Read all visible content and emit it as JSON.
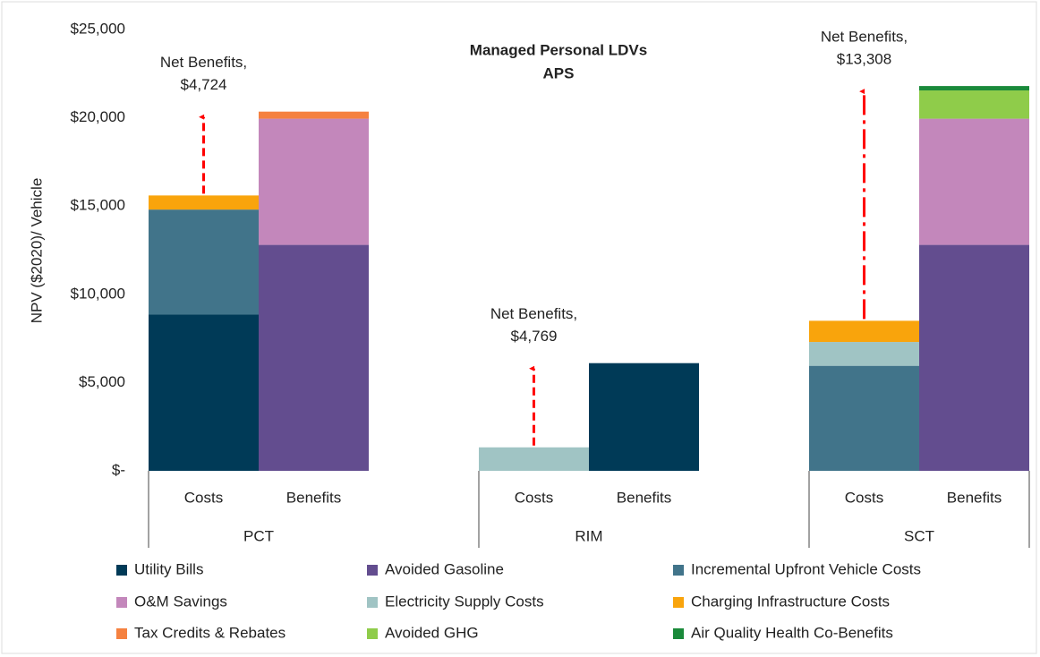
{
  "chart_data": {
    "type": "stacked_bar",
    "title": [
      "Managed Personal LDVs",
      "APS"
    ],
    "y_label": "NPV ($2020)/ Vehicle",
    "categories": [
      "Costs",
      "Benefits",
      "Costs",
      "Benefits",
      "Costs",
      "Benefits"
    ],
    "groups": [
      "PCT",
      "RIM",
      "SCT"
    ],
    "series": [
      {
        "name": "Utility Bills",
        "color": "#003a57",
        "values": [
          8850,
          null,
          null,
          6100,
          null,
          null
        ]
      },
      {
        "name": "Avoided Gasoline",
        "color": "#634d8f",
        "values": [
          null,
          12800,
          null,
          null,
          null,
          12800
        ]
      },
      {
        "name": "Incremental Upfront Vehicle Costs",
        "color": "#41748a",
        "values": [
          5950,
          null,
          null,
          null,
          5950,
          null
        ]
      },
      {
        "name": "O&M Savings",
        "color": "#c387bb",
        "values": [
          null,
          7150,
          null,
          null,
          null,
          7150
        ]
      },
      {
        "name": "Electricity Supply Costs",
        "color": "#a0c4c4",
        "values": [
          null,
          null,
          1330,
          null,
          1350,
          null
        ]
      },
      {
        "name": "Charging Infrastructure Costs",
        "color": "#f9a40c",
        "values": [
          800,
          null,
          null,
          null,
          1200,
          null
        ]
      },
      {
        "name": "Tax Credits & Rebates",
        "color": "#f58140",
        "values": [
          null,
          400,
          null,
          null,
          null,
          null
        ]
      },
      {
        "name": "Avoided GHG",
        "color": "#8fcc4a",
        "values": [
          null,
          null,
          null,
          null,
          null,
          1600
        ]
      },
      {
        "name": "Air Quality Health Co-Benefits",
        "color": "#1a8a3a",
        "values": [
          null,
          null,
          null,
          null,
          null,
          250
        ]
      }
    ],
    "annotations": [
      {
        "text": "Net Benefits,",
        "value": 4724,
        "label": "$4,724"
      },
      {
        "text": "Net Benefits,",
        "value": 4769,
        "label": "$4,769"
      },
      {
        "text": "Net Benefits,",
        "value": 13308,
        "label": "$13,308"
      }
    ],
    "ylim": [
      0,
      25000
    ],
    "yticks": [
      {
        "value": 0,
        "label": "$-"
      },
      {
        "value": 5000,
        "label": "$5,000"
      },
      {
        "value": 10000,
        "label": "$10,000"
      },
      {
        "value": 15000,
        "label": "$15,000"
      },
      {
        "value": 20000,
        "label": "$20,000"
      },
      {
        "value": 25000,
        "label": "$25,000"
      }
    ],
    "legend": "bottom"
  }
}
